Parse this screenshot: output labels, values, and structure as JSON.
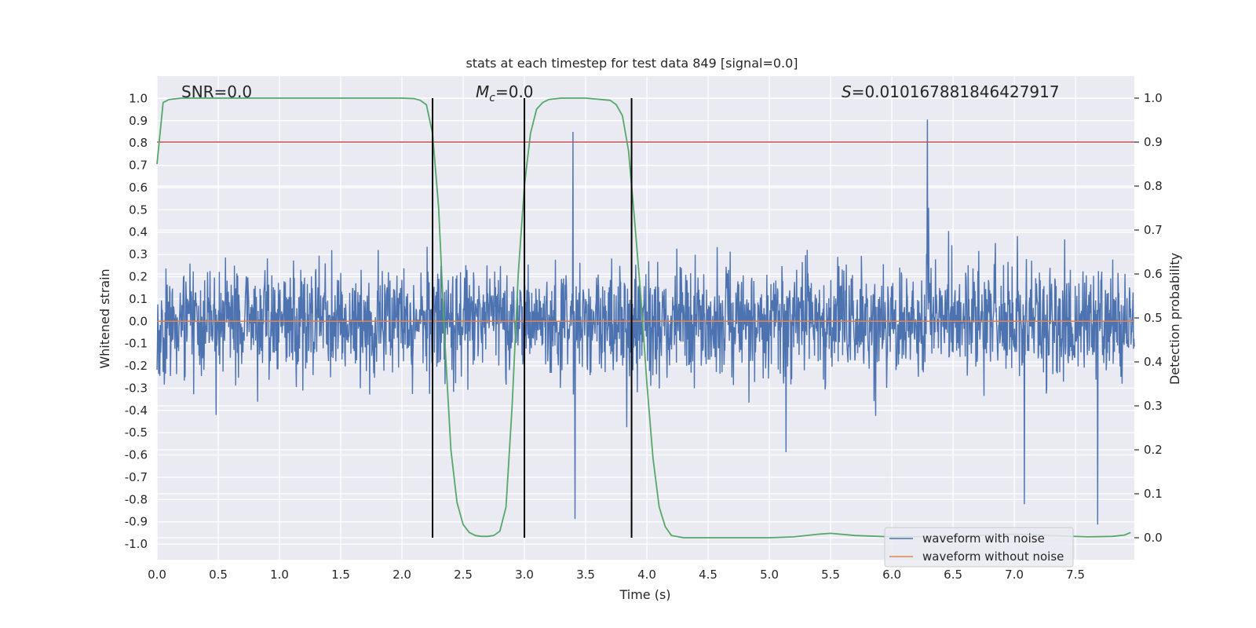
{
  "chart_data": {
    "type": "line",
    "title": "stats at each timestep for test data 849 [signal=0.0]",
    "xlabel": "Time (s)",
    "ylabel": "Whitened strain",
    "y2label": "Detection probability",
    "xlim": [
      0.0,
      7.98
    ],
    "ylim": [
      -1.07,
      1.1
    ],
    "y2lim": [
      -0.05,
      1.05
    ],
    "xticks": [
      "0.0",
      "0.5",
      "1.0",
      "1.5",
      "2.0",
      "2.5",
      "3.0",
      "3.5",
      "4.0",
      "4.5",
      "5.0",
      "5.5",
      "6.0",
      "6.5",
      "7.0",
      "7.5"
    ],
    "yticks": [
      "1.0",
      "0.9",
      "0.8",
      "0.7",
      "0.6",
      "0.5",
      "0.4",
      "0.3",
      "0.2",
      "0.1",
      "0.0",
      "-0.1",
      "-0.2",
      "-0.3",
      "-0.4",
      "-0.5",
      "-0.6",
      "-0.7",
      "-0.8",
      "-0.9",
      "-1.0"
    ],
    "y2ticks": [
      "1.0",
      "0.9",
      "0.8",
      "0.7",
      "0.6",
      "0.5",
      "0.4",
      "0.3",
      "0.2",
      "0.1",
      "0.0"
    ],
    "annotations": {
      "snr": "SNR=0.0",
      "mc_symbol": "M",
      "mc_sub": "c",
      "mc_value": "=0.0",
      "s_symbol": "S",
      "s_value": "=0.010167881846427917"
    },
    "threshold_probability": 0.9,
    "vertical_markers": [
      2.25,
      3.0,
      3.875
    ],
    "legend": {
      "placement": "lower-right",
      "entries": [
        "waveform with noise",
        "waveform without noise"
      ]
    },
    "series": [
      {
        "name": "waveform with noise",
        "color": "#4c72b0",
        "description": "whitened noisy strain, approx. within [-0.96, 1.0]"
      },
      {
        "name": "waveform without noise",
        "color": "#dd8452",
        "values": "constant 0.0"
      },
      {
        "name": "detection probability",
        "color": "#55a868",
        "x": [
          0.0,
          0.05,
          0.1,
          0.2,
          0.5,
          1.0,
          1.5,
          2.0,
          2.1,
          2.15,
          2.2,
          2.25,
          2.3,
          2.35,
          2.4,
          2.45,
          2.5,
          2.55,
          2.6,
          2.65,
          2.7,
          2.75,
          2.8,
          2.85,
          2.9,
          2.95,
          3.0,
          3.05,
          3.1,
          3.15,
          3.2,
          3.3,
          3.5,
          3.7,
          3.75,
          3.8,
          3.85,
          3.9,
          3.95,
          4.0,
          4.05,
          4.1,
          4.15,
          4.2,
          4.3,
          4.5,
          5.0,
          5.2,
          5.4,
          5.5,
          5.7,
          6.0,
          6.5,
          7.0,
          7.4,
          7.6,
          7.8,
          7.9,
          7.95
        ],
        "values": [
          0.85,
          0.99,
          0.997,
          1.0,
          1.0,
          1.0,
          1.0,
          1.0,
          0.999,
          0.995,
          0.985,
          0.92,
          0.75,
          0.45,
          0.2,
          0.08,
          0.03,
          0.012,
          0.005,
          0.003,
          0.003,
          0.005,
          0.015,
          0.07,
          0.3,
          0.6,
          0.8,
          0.92,
          0.975,
          0.99,
          0.997,
          1.0,
          1.0,
          0.995,
          0.985,
          0.96,
          0.88,
          0.72,
          0.55,
          0.35,
          0.18,
          0.07,
          0.025,
          0.005,
          0.0,
          0.0,
          0.0,
          0.002,
          0.008,
          0.01,
          0.005,
          0.002,
          0.003,
          0.008,
          0.004,
          0.002,
          0.003,
          0.006,
          0.012
        ]
      },
      {
        "name": "threshold",
        "color": "#c44e52",
        "values": "constant 0.9 (detection probability)"
      }
    ]
  }
}
